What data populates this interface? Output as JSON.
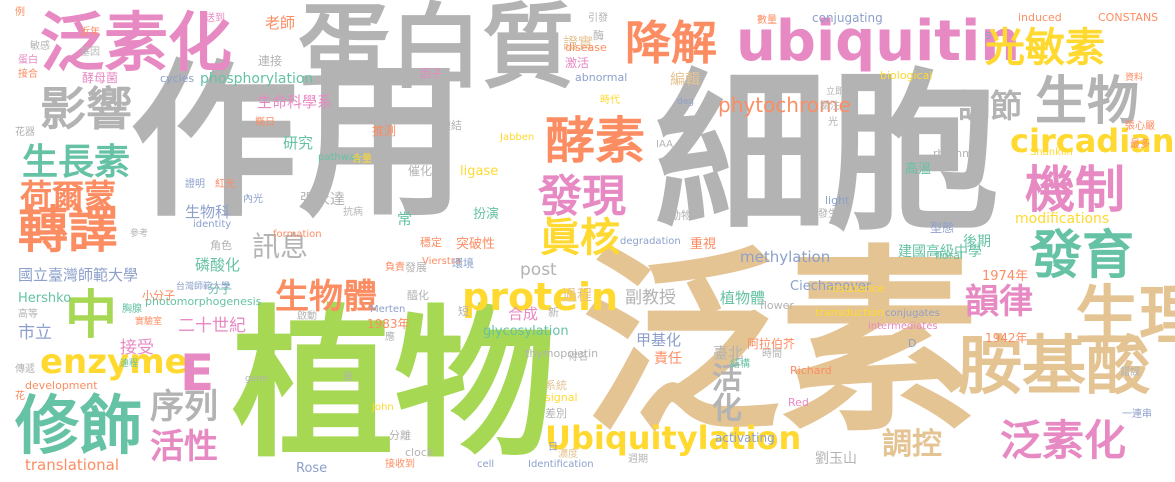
{
  "words": {
    "zuoyong": "作用",
    "xibao": "細胞",
    "zhiwu": "植物",
    "fansu": "泛素",
    "danbaizhi": "蛋白質",
    "fansuhua_a": "泛素化",
    "ubiquitin": "ubiquitin",
    "jiangjie": "降解",
    "guangminsu": "光敏素",
    "yingxiang": "影響",
    "jiaosu": "酵素",
    "shengwu": "生物",
    "tiaojie": "調節",
    "circadian": "circadian",
    "jizhi": "機制",
    "fayu": "發育",
    "faxian": "發現",
    "shengzhangsu": "生長素",
    "heermeng": "荷爾蒙",
    "zhuanyi": "轉譯",
    "zhenhe": "眞核",
    "zhong": "中",
    "protein": "protein",
    "shengwuti": "生物體",
    "yunlv": "韻律",
    "shengli": "生理",
    "anjisuan": "胺基酸",
    "enzyme": "enzyme",
    "E": "E",
    "xiushi": "修飾",
    "xulie": "序列",
    "huoxing": "活性",
    "ubiquitylation": "Ubiquitylation",
    "tiaokong": "調控",
    "fansuhua_b": "泛素化",
    "huohua": "活化",
    "xunxi": "訊息",
    "phytochrome": "phytochrome",
    "shengmingkexue": "生命科學系",
    "laoshi": "老師",
    "zhengshi": "證實",
    "bianji": "編輯",
    "yanjiu": "研究",
    "phosphorylation": "phosphorylation",
    "guoli": "國立臺灣師範大學",
    "ershishiji": "二十世紀",
    "shizhaochan": "市立",
    "jieshou": "接受",
    "linsuanhua": "磷酸化",
    "jiajihua": "甲基化",
    "fujiaoshou": "副教授",
    "zhiwuti": "植物體",
    "methylation": "methylation",
    "jiangouzhongxue": "建國高級中學",
    "translational": "translational",
    "post": "post",
    "guocheng": "過程",
    "hecheng": "合成",
    "glycosylation": "glycosylation",
    "taibei": "臺北",
    "zeren": "責任",
    "liuyushan": "劉玉山",
    "modifications": "modifications",
    "houqi": "後期",
    "xingtai": "型態",
    "gaowen": "高溫",
    "shengwuke": "生物科",
    "zhangyongda": "張永達",
    "ligase": "ligase",
    "tupoxing": "突破性",
    "banyan": "扮演",
    "chongshi": "重視",
    "ciechanover": "Ciechanover",
    "jiaolian": "轉錄",
    "hershko": "Hershko",
    "rose": "Rose",
    "year1974": "1974年",
    "year1983": "1983年",
    "year1942": "1942年",
    "alabobo": "阿拉伯芥",
    "thymopoietin": "thymopoietin",
    "photomorphogenesis": "photomorphogenesis",
    "xiaofenzi": "小分子",
    "fenzi": "分子",
    "activating": "activating",
    "identification": "Identification",
    "dongwu": "動物",
    "jiaomujun": "酵母菌",
    "conjugating": "conjugating",
    "constans": "CONSTANS",
    "induced": "induced",
    "biological": "biological",
    "abnormal": "abnormal",
    "disease": "disease",
    "cycles": "cycles",
    "rhythm": "rhythm",
    "shanklin": "Shanklin",
    "light": "light",
    "flower": "flower",
    "floral": "floral",
    "resistance": "resistance",
    "conjugates": "conjugates",
    "intermediates": "intermediates",
    "transduction": "transduction",
    "richard": "Richard",
    "red": "Red",
    "development": "development",
    "signal": "signal",
    "clock": "clock",
    "cell": "cell",
    "john": "John",
    "merten": "Merten",
    "vierstra": "Vierstra",
    "jabben": "Jabben",
    "formation": "formation",
    "identity": "identity",
    "pathway": "pathway",
    "degradation": "degradation",
    "iaa": "IAA",
    "gene": "gene",
    "D": "D",
    "S": "S",
    "lianjie": "連接",
    "jihuo": "激活",
    "yinzi": "因子",
    "cuihua": "催化",
    "tuice": "推測",
    "lianjie2": "鏈結",
    "shidai": "時代",
    "huanjing": "環境",
    "wending": "穩定",
    "fazhan": "發展",
    "kangbing": "抗病",
    "hanliang": "含量",
    "gaixu": "概日",
    "zhengming": "證明",
    "hongguang": "紅光",
    "neiguang": "內光",
    "jiaose": "角色",
    "qidong": "啟動",
    "suanhua": "醯化",
    "xinlei": "新",
    "duan": "短",
    "ying": "應",
    "jie": "皆",
    "fuze": "負責",
    "xitong": "系統",
    "chabie": "差別",
    "fenli": "分離",
    "nongdu": "濃度",
    "jieshoudao": "接收到",
    "zhouqi": "週期",
    "ri": "日",
    "shijian": "時間",
    "jiejiao": "結構",
    "guang": "光",
    "biaoxian": "表現",
    "fasheng": "發生",
    "guanzhu": "關注",
    "liji": "立即",
    "zuiduo": "最多",
    "cuowu": "錯誤",
    "yilianchuan": "一連串",
    "shuliang": "數量",
    "ziliao": "資料",
    "zhangxinyu": "張心嚴",
    "yindao": "引發",
    "mei": "酶",
    "songdao": "送到",
    "jinnian": "近年",
    "jiyin": "基因",
    "danbai": "蛋白",
    "jiehe": "接合",
    "minggan": "敏感",
    "li": "例",
    "gaodeng": "高等",
    "chuandi": "傳遞",
    "yuanduan": "遠程",
    "hua": "花",
    "huaqi": "花器",
    "shiyanshi": "實驗室",
    "xiongxian": "胸腺",
    "cankao": "參考",
    "demin": "得名",
    "taiwan_small": "台灣師範大學",
    "chengzhang": "常",
    "yingxiang2": "影",
    "deg": "deg",
    "jianchuanshi": "胸腺"
  }
}
